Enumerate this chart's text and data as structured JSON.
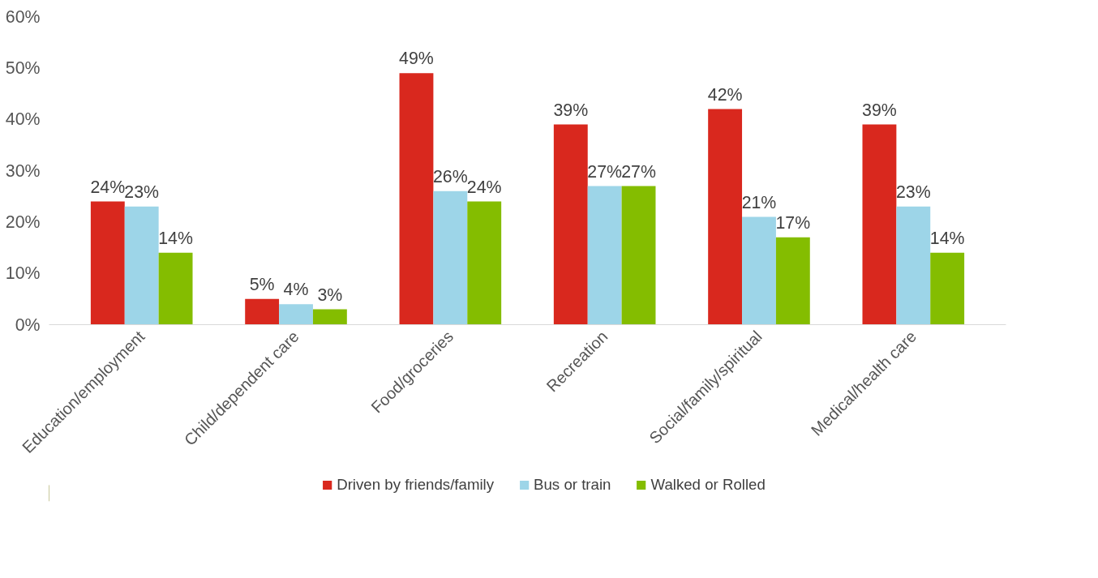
{
  "chart_data": {
    "type": "bar",
    "categories": [
      "Education/employment",
      "Child/dependent care",
      "Food/groceries",
      "Recreation",
      "Social/family/spiritual",
      "Medical/health care"
    ],
    "series": [
      {
        "name": "Driven by friends/family",
        "color": "#d9281e",
        "values": [
          24,
          5,
          49,
          39,
          42,
          39
        ],
        "value_labels": [
          "24%",
          "5%",
          "49%",
          "39%",
          "42%",
          "39%"
        ]
      },
      {
        "name": "Bus or train",
        "color": "#9dd5e8",
        "values": [
          23,
          4,
          26,
          27,
          21,
          23
        ],
        "value_labels": [
          "23%",
          "4%",
          "26%",
          "27%",
          "21%",
          "23%"
        ]
      },
      {
        "name": "Walked or Rolled",
        "color": "#84bd00",
        "values": [
          14,
          3,
          24,
          27,
          17,
          14
        ],
        "value_labels": [
          "14%",
          "3%",
          "24%",
          "27%",
          "17%",
          "14%"
        ]
      }
    ],
    "ylim": [
      0,
      60
    ],
    "yticks": [
      {
        "value": 0,
        "label": "0%"
      },
      {
        "value": 10,
        "label": "10%"
      },
      {
        "value": 20,
        "label": "20%"
      },
      {
        "value": 30,
        "label": "30%"
      },
      {
        "value": 40,
        "label": "40%"
      },
      {
        "value": 50,
        "label": "50%"
      },
      {
        "value": 60,
        "label": "60%"
      }
    ],
    "grid": false,
    "legend": "bottom"
  }
}
